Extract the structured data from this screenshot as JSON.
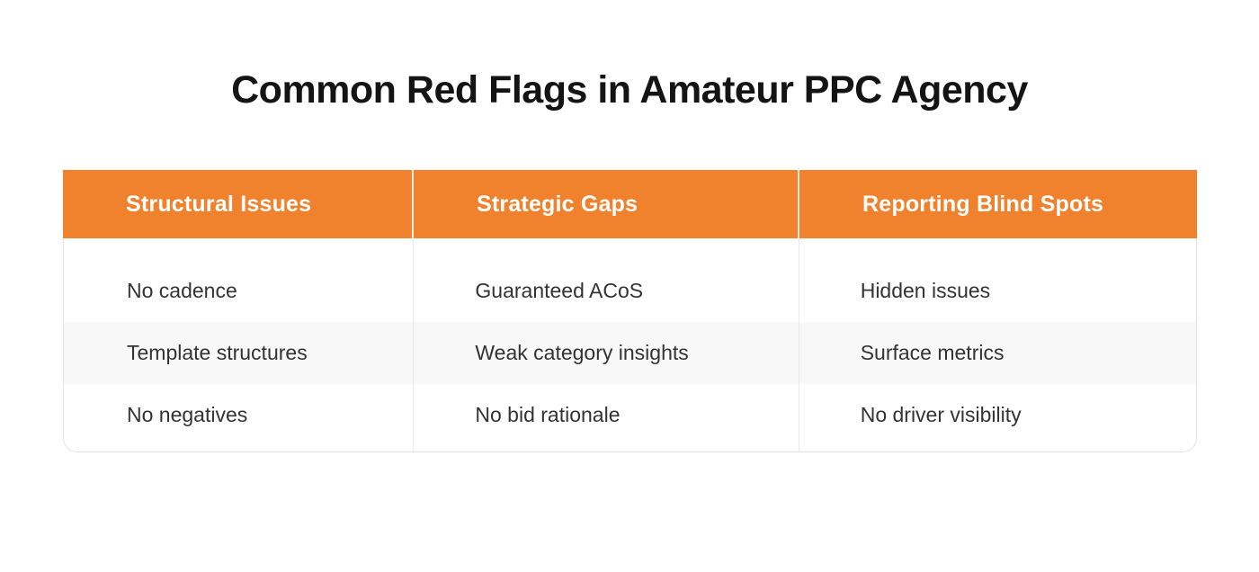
{
  "page_title": "Common Red Flags in Amateur PPC Agency",
  "chart_data": {
    "type": "table",
    "title": "Common Red Flags in Amateur PPC Agency",
    "columns": [
      "Structural Issues",
      "Strategic Gaps",
      "Reporting Blind Spots"
    ],
    "rows": [
      [
        "No cadence",
        "Guaranteed ACoS",
        "Hidden issues"
      ],
      [
        "Template structures",
        "Weak category insights",
        "Surface metrics"
      ],
      [
        "No negatives",
        "No bid rationale",
        "No driver visibility"
      ]
    ],
    "layout": {
      "header_position": "top",
      "alt_row_shaded_index": 1,
      "grid": "column-dividers-only"
    }
  },
  "colors": {
    "header_bg": "#F0812D",
    "header_text": "#FFFFFF",
    "alt_row_bg": "#F8F8F8",
    "body_text": "#333333",
    "title_text": "#141414",
    "border": "#E3E3E3",
    "divider": "#E8E8E8",
    "page_bg": "#FFFFFF"
  }
}
